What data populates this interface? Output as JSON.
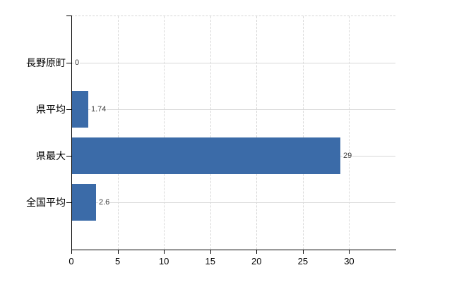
{
  "chart_data": {
    "type": "bar",
    "orientation": "horizontal",
    "title": "",
    "xlabel": "",
    "ylabel": "",
    "categories": [
      "長野原町",
      "県平均",
      "県最大",
      "全国平均"
    ],
    "values": [
      0,
      1.74,
      29,
      2.6
    ],
    "value_labels": [
      "0",
      "1.74",
      "29",
      "2.6"
    ],
    "x_tick_labels": [
      "0",
      "5",
      "10",
      "15",
      "20",
      "25",
      "30"
    ],
    "x_tick_values": [
      0,
      5,
      10,
      15,
      20,
      25,
      30
    ],
    "xlim": [
      0,
      35
    ],
    "grid": "on",
    "legend": "none",
    "colors": {
      "bar": "#3b6ba8",
      "axis": "#000000",
      "gridline": "#d8d8d8",
      "value_text": "#3c3c3c",
      "label_text": "#000000",
      "background": "#ffffff"
    }
  }
}
